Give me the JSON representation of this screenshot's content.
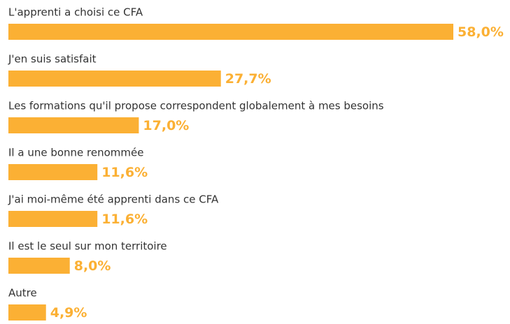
{
  "chart_data": {
    "type": "hbar",
    "categories": [
      "L'apprenti a choisi ce CFA",
      "J'en suis satisfait",
      "Les formations qu'il propose correspondent globalement à mes besoins",
      "Il a une bonne renommée",
      "J'ai moi-même été apprenti dans ce CFA",
      "Il est le seul sur mon territoire",
      "Autre"
    ],
    "values": [
      58.0,
      27.7,
      17.0,
      11.6,
      11.6,
      8.0,
      4.9
    ],
    "value_labels": [
      "58,0%",
      "27,7%",
      "17,0%",
      "11,6%",
      "11,6%",
      "8,0%",
      "4,9%"
    ],
    "color": "#fbb034"
  }
}
